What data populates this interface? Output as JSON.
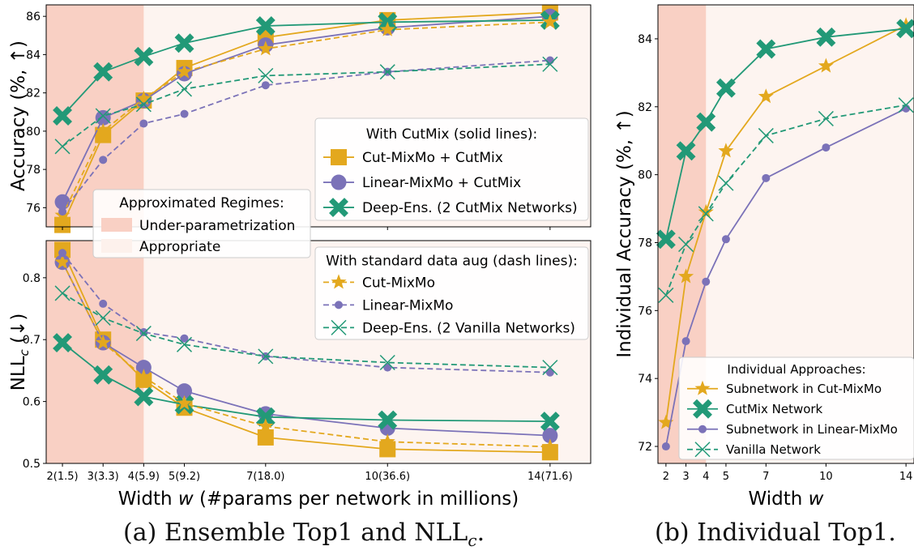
{
  "chart_data": [
    {
      "type": "line",
      "panel": "ensemble-accuracy",
      "x": [
        2,
        3,
        4,
        5,
        7,
        10,
        14
      ],
      "ylabel": "Accuracy (%, ↑)",
      "ylim": [
        75,
        86.6
      ],
      "yticks": [
        76,
        78,
        80,
        82,
        84,
        86
      ],
      "regimes_legend": {
        "title": "Approximated Regimes:",
        "items": [
          "Under-parametrization",
          "Appropriate"
        ],
        "colors": [
          "#f9d0c4",
          "#fdf1ec"
        ]
      },
      "legend_title": "With CutMix (solid lines):",
      "legend_placement": "center-right",
      "series": [
        {
          "name": "Cut-MixMo + CutMix",
          "style": "solid",
          "marker": "square",
          "color": "#e3a81e",
          "values": [
            75.1,
            79.8,
            81.6,
            83.3,
            84.9,
            85.8,
            86.2
          ]
        },
        {
          "name": "Linear-MixMo + CutMix",
          "style": "solid",
          "marker": "circle",
          "color": "#7b72b8",
          "values": [
            76.3,
            80.7,
            81.6,
            83.0,
            84.5,
            85.4,
            86.0
          ]
        },
        {
          "name": "Deep-Ens. (2 CutMix Networks)",
          "style": "solid",
          "marker": "xbig",
          "color": "#229977",
          "values": [
            80.8,
            83.1,
            83.9,
            84.6,
            85.5,
            85.7,
            85.8
          ]
        },
        {
          "name": "Cut-MixMo",
          "style": "dash",
          "marker": "star",
          "color": "#e3a81e",
          "values": [
            75.6,
            80.0,
            81.7,
            83.1,
            84.3,
            85.3,
            85.7
          ]
        },
        {
          "name": "Linear-MixMo",
          "style": "dash",
          "marker": "dot",
          "color": "#7b72b8",
          "values": [
            75.8,
            78.5,
            80.4,
            80.9,
            82.4,
            83.1,
            83.7
          ]
        },
        {
          "name": "Deep-Ens. (2 Vanilla Networks)",
          "style": "dash",
          "marker": "x",
          "color": "#229977",
          "values": [
            79.2,
            80.8,
            81.4,
            82.2,
            82.9,
            83.1,
            83.5
          ]
        }
      ]
    },
    {
      "type": "line",
      "panel": "ensemble-nll",
      "x": [
        2,
        3,
        4,
        5,
        7,
        10,
        14
      ],
      "xticklabels": [
        "2(1.5)",
        "3(3.3)",
        "4(5.9)",
        "5(9.2)",
        "7(18.0)",
        "10(36.6)",
        "14(71.6)"
      ],
      "xlabel": "Width w (#params per network in millions)",
      "ylabel_main": "NLL",
      "ylabel_sub": "c",
      "ylabel_tail": " (↓)",
      "ylim": [
        0.5,
        0.86
      ],
      "yticks": [
        "0.5",
        "0.6",
        "0.7",
        "0.8"
      ],
      "legend_title": "With standard data aug (dash lines):",
      "legend_placement": "top-right",
      "series": [
        {
          "name": "Cut-MixMo + CutMix",
          "style": "solid",
          "marker": "square",
          "color": "#e3a81e",
          "values": [
            0.845,
            0.7,
            0.635,
            0.59,
            0.542,
            0.523,
            0.518
          ]
        },
        {
          "name": "Linear-MixMo + CutMix",
          "style": "solid",
          "marker": "circle",
          "color": "#7b72b8",
          "values": [
            0.825,
            0.695,
            0.655,
            0.617,
            0.58,
            0.557,
            0.545
          ]
        },
        {
          "name": "Deep-Ens. (2 CutMix Networks)",
          "style": "solid",
          "marker": "xbig",
          "color": "#229977",
          "values": [
            0.695,
            0.643,
            0.608,
            0.595,
            0.575,
            0.57,
            0.568
          ]
        },
        {
          "name": "Cut-MixMo",
          "style": "dash",
          "marker": "star",
          "color": "#e3a81e",
          "values": [
            0.825,
            0.695,
            0.64,
            0.597,
            0.56,
            0.535,
            0.527
          ]
        },
        {
          "name": "Linear-MixMo",
          "style": "dash",
          "marker": "dot",
          "color": "#7b72b8",
          "values": [
            0.84,
            0.758,
            0.712,
            0.702,
            0.673,
            0.655,
            0.647
          ]
        },
        {
          "name": "Deep-Ens. (2 Vanilla Networks)",
          "style": "dash",
          "marker": "x",
          "color": "#229977",
          "values": [
            0.775,
            0.735,
            0.71,
            0.692,
            0.673,
            0.663,
            0.655
          ]
        }
      ]
    },
    {
      "type": "line",
      "panel": "individual-accuracy",
      "x": [
        2,
        3,
        4,
        5,
        7,
        10,
        14
      ],
      "xticklabels": [
        "2",
        "3",
        "4",
        "5",
        "7",
        "10",
        "14"
      ],
      "xlabel": "Width w",
      "ylabel": "Individual Accuracy (%, ↑)",
      "ylim": [
        71.5,
        85
      ],
      "yticks": [
        72,
        74,
        76,
        78,
        80,
        82,
        84
      ],
      "legend_title": "Individual Approaches:",
      "legend_placement": "bottom-right",
      "series": [
        {
          "name": "Subnetwork in Cut-MixMo",
          "style": "solid",
          "marker": "star",
          "color": "#e3a81e",
          "values": [
            72.7,
            77.0,
            78.9,
            80.7,
            82.3,
            83.2,
            84.4
          ]
        },
        {
          "name": "CutMix Network",
          "style": "solid",
          "marker": "xbig",
          "color": "#229977",
          "values": [
            78.1,
            80.7,
            81.55,
            82.55,
            83.7,
            84.05,
            84.3
          ]
        },
        {
          "name": "Subnetwork in Linear-MixMo",
          "style": "solid",
          "marker": "dot",
          "color": "#7b72b8",
          "values": [
            72.0,
            75.1,
            76.85,
            78.1,
            79.9,
            80.8,
            81.95
          ]
        },
        {
          "name": "Vanilla Network",
          "style": "dash",
          "marker": "x",
          "color": "#229977",
          "values": [
            76.45,
            77.95,
            78.85,
            79.75,
            81.15,
            81.65,
            82.05
          ]
        }
      ]
    }
  ],
  "captions": {
    "a": "(a) Ensemble Top1 and NLL",
    "a_sub": "c",
    "a_tail": ".",
    "b": "(b) Individual Top1."
  }
}
